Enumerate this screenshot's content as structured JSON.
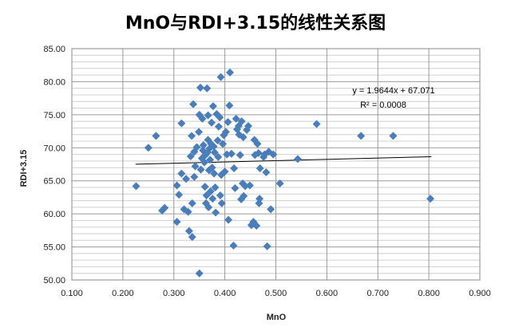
{
  "chart_data": {
    "type": "scatter",
    "title": "MnO与RDI+3.15的线性关系图",
    "xlabel": "MnO",
    "ylabel": "RDI+3.15",
    "xlim": [
      0.1,
      0.9
    ],
    "ylim": [
      50,
      85
    ],
    "x_ticks": [
      "0.100",
      "0.200",
      "0.300",
      "0.400",
      "0.500",
      "0.600",
      "0.700",
      "0.800",
      "0.900"
    ],
    "y_ticks": [
      "50.00",
      "55.00",
      "60.00",
      "65.00",
      "70.00",
      "75.00",
      "80.00",
      "85.00"
    ],
    "grid": true,
    "marker_color": "#4a7ebb",
    "trendline": {
      "slope": 1.9644,
      "intercept": 67.071,
      "x_range": [
        0.225,
        0.805
      ],
      "color": "#000000"
    },
    "equation_label": "y = 1.9644x  + 67.071",
    "r2_label": "R² = 0.0008",
    "points": [
      [
        0.226,
        64.2
      ],
      [
        0.25,
        70.0
      ],
      [
        0.265,
        71.8
      ],
      [
        0.277,
        60.5
      ],
      [
        0.282,
        60.9
      ],
      [
        0.306,
        58.8
      ],
      [
        0.306,
        64.3
      ],
      [
        0.31,
        62.9
      ],
      [
        0.315,
        73.7
      ],
      [
        0.315,
        66.1
      ],
      [
        0.32,
        60.7
      ],
      [
        0.324,
        65.3
      ],
      [
        0.328,
        60.3
      ],
      [
        0.33,
        57.4
      ],
      [
        0.333,
        68.7
      ],
      [
        0.335,
        71.8
      ],
      [
        0.336,
        61.6
      ],
      [
        0.336,
        56.5
      ],
      [
        0.338,
        76.6
      ],
      [
        0.34,
        69.4
      ],
      [
        0.34,
        65.6
      ],
      [
        0.342,
        67.2
      ],
      [
        0.345,
        70.1
      ],
      [
        0.349,
        72.4
      ],
      [
        0.35,
        75.0
      ],
      [
        0.35,
        51.0
      ],
      [
        0.352,
        79.1
      ],
      [
        0.353,
        66.7
      ],
      [
        0.355,
        68.4
      ],
      [
        0.356,
        74.4
      ],
      [
        0.357,
        69.6
      ],
      [
        0.358,
        70.4
      ],
      [
        0.36,
        67.8
      ],
      [
        0.361,
        64.1
      ],
      [
        0.362,
        68.9
      ],
      [
        0.363,
        61.6
      ],
      [
        0.364,
        62.8
      ],
      [
        0.365,
        79.0
      ],
      [
        0.366,
        69.3
      ],
      [
        0.367,
        74.9
      ],
      [
        0.367,
        71.2
      ],
      [
        0.368,
        61.0
      ],
      [
        0.369,
        66.6
      ],
      [
        0.37,
        69.9
      ],
      [
        0.371,
        68.2
      ],
      [
        0.372,
        63.4
      ],
      [
        0.373,
        70.6
      ],
      [
        0.374,
        73.8
      ],
      [
        0.375,
        67.0
      ],
      [
        0.376,
        62.3
      ],
      [
        0.377,
        76.3
      ],
      [
        0.378,
        70.2
      ],
      [
        0.379,
        66.1
      ],
      [
        0.38,
        69.3
      ],
      [
        0.381,
        64.0
      ],
      [
        0.382,
        60.2
      ],
      [
        0.384,
        75.1
      ],
      [
        0.386,
        71.1
      ],
      [
        0.387,
        68.6
      ],
      [
        0.388,
        73.2
      ],
      [
        0.39,
        74.6
      ],
      [
        0.391,
        62.8
      ],
      [
        0.392,
        80.7
      ],
      [
        0.393,
        65.9
      ],
      [
        0.394,
        61.6
      ],
      [
        0.396,
        70.6
      ],
      [
        0.398,
        71.9
      ],
      [
        0.4,
        66.4
      ],
      [
        0.402,
        72.4
      ],
      [
        0.404,
        69.0
      ],
      [
        0.406,
        73.9
      ],
      [
        0.407,
        59.1
      ],
      [
        0.409,
        76.4
      ],
      [
        0.41,
        81.4
      ],
      [
        0.413,
        69.1
      ],
      [
        0.417,
        55.2
      ],
      [
        0.418,
        66.9
      ],
      [
        0.42,
        63.9
      ],
      [
        0.422,
        74.4
      ],
      [
        0.424,
        72.8
      ],
      [
        0.427,
        73.3
      ],
      [
        0.428,
        72.0
      ],
      [
        0.43,
        68.9
      ],
      [
        0.432,
        62.2
      ],
      [
        0.433,
        74.0
      ],
      [
        0.435,
        64.6
      ],
      [
        0.436,
        71.6
      ],
      [
        0.437,
        62.7
      ],
      [
        0.44,
        64.2
      ],
      [
        0.443,
        72.7
      ],
      [
        0.446,
        73.3
      ],
      [
        0.449,
        64.3
      ],
      [
        0.452,
        58.3
      ],
      [
        0.456,
        58.8
      ],
      [
        0.458,
        71.2
      ],
      [
        0.459,
        68.9
      ],
      [
        0.462,
        58.2
      ],
      [
        0.464,
        70.6
      ],
      [
        0.466,
        69.2
      ],
      [
        0.467,
        61.6
      ],
      [
        0.468,
        62.3
      ],
      [
        0.469,
        66.9
      ],
      [
        0.476,
        68.6
      ],
      [
        0.478,
        69.0
      ],
      [
        0.481,
        66.3
      ],
      [
        0.483,
        55.1
      ],
      [
        0.486,
        69.4
      ],
      [
        0.49,
        60.7
      ],
      [
        0.495,
        69.0
      ],
      [
        0.508,
        64.6
      ],
      [
        0.543,
        68.3
      ],
      [
        0.58,
        73.6
      ],
      [
        0.667,
        71.8
      ],
      [
        0.73,
        71.8
      ],
      [
        0.803,
        62.3
      ]
    ]
  }
}
